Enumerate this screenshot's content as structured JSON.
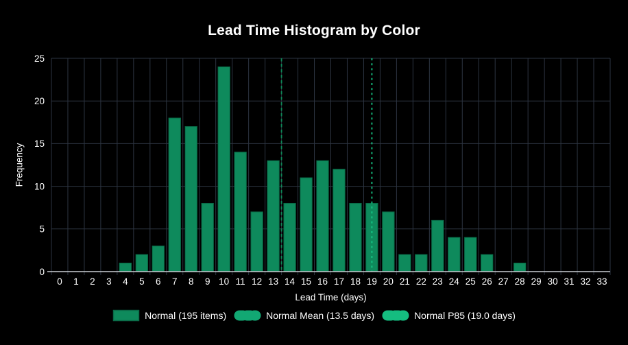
{
  "chart": {
    "title": "Lead Time Histogram by Color",
    "xlabel": "Lead Time (days)",
    "ylabel": "Frequency"
  },
  "chart_data": {
    "type": "bar",
    "title": "Lead Time Histogram by Color",
    "xlabel": "Lead Time (days)",
    "ylabel": "Frequency",
    "x": [
      0,
      1,
      2,
      3,
      4,
      5,
      6,
      7,
      8,
      9,
      10,
      11,
      12,
      13,
      14,
      15,
      16,
      17,
      18,
      19,
      20,
      21,
      22,
      23,
      24,
      25,
      26,
      27,
      28,
      29,
      30,
      31,
      32,
      33
    ],
    "values": [
      0,
      0,
      0,
      0,
      1,
      2,
      3,
      18,
      17,
      8,
      24,
      14,
      7,
      13,
      8,
      11,
      13,
      12,
      8,
      8,
      7,
      2,
      2,
      6,
      4,
      4,
      2,
      0,
      1,
      0,
      0,
      0,
      0,
      0
    ],
    "series_label": "Normal (195 items)",
    "total_items": 195,
    "ylim": [
      0,
      25
    ],
    "yticks": [
      0,
      5,
      10,
      15,
      20,
      25
    ],
    "grid": true,
    "legend_position": "bottom-center",
    "annotations": [
      {
        "type": "vline",
        "x": 13.5,
        "style": "dashed",
        "label": "Normal Mean (13.5 days)"
      },
      {
        "type": "vline",
        "x": 19.0,
        "style": "dotted",
        "label": "Normal P85 (19.0 days)"
      }
    ],
    "colors": {
      "background": "#000000",
      "text": "#ffffff",
      "grid": "#2d3542",
      "axis": "#c9cdd2",
      "bar_fill": "#0e8a5c",
      "bar_edge": "#0a6a47",
      "mean_line": "#0d8a58",
      "p85_line": "#16c886",
      "legend_mean_swatch": "#12a873",
      "legend_p85_swatch": "#15bd80"
    }
  }
}
